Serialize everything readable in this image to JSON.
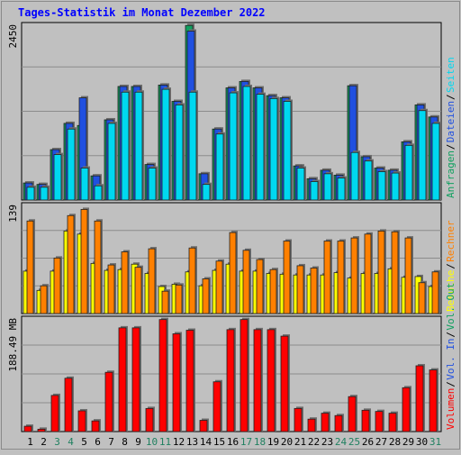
{
  "chart_data": {
    "type": "bar",
    "title": "Tages-Statistik im Monat Dezember 2022",
    "colors": {
      "background": "#c0c0c0",
      "title": "#0000ff",
      "anfragen": "#10a060",
      "dateien": "#2050e0",
      "seiten": "#00d8f0",
      "besuche": "#ffff00",
      "rechner": "#ff8000",
      "volumen": "#ff0000",
      "vol_in": "#2050e0",
      "vol_out": "#10a060",
      "weekend_day": "#208060",
      "weekday": "#000000"
    },
    "days": [
      "1",
      "2",
      "3",
      "4",
      "5",
      "6",
      "7",
      "8",
      "9",
      "10",
      "11",
      "12",
      "13",
      "14",
      "15",
      "16",
      "17",
      "18",
      "19",
      "20",
      "21",
      "22",
      "23",
      "24",
      "25",
      "26",
      "27",
      "28",
      "29",
      "30",
      "31"
    ],
    "weekend_days": [
      "3",
      "4",
      "10",
      "11",
      "17",
      "18",
      "24",
      "25",
      "31"
    ],
    "panels": [
      {
        "id": "hits",
        "max_label": "2450",
        "ymax": 2450,
        "legend": [
          {
            "label": "Anfragen",
            "color": "#10a060"
          },
          {
            "label": "Dateien",
            "color": "#2050e0"
          },
          {
            "label": "Seiten",
            "color": "#00d8f0"
          }
        ],
        "series": [
          {
            "name": "Anfragen",
            "color": "#10a060",
            "values": [
              240,
              220,
              710,
              1080,
              1050,
              340,
              1130,
              1600,
              1600,
              500,
              1620,
              1390,
              2460,
              370,
              1000,
              1580,
              1670,
              1580,
              1470,
              1440,
              480,
              300,
              420,
              350,
              1610,
              610,
              450,
              420,
              820,
              1340,
              1170
            ]
          },
          {
            "name": "Dateien",
            "color": "#2050e0",
            "values": [
              240,
              220,
              710,
              1080,
              1440,
              340,
              1130,
              1600,
              1600,
              500,
              1620,
              1390,
              2380,
              370,
              1000,
              1580,
              1670,
              1580,
              1470,
              1440,
              480,
              300,
              420,
              350,
              1610,
              610,
              450,
              420,
              820,
              1340,
              1170
            ]
          },
          {
            "name": "Seiten",
            "color": "#00d8f0",
            "values": [
              180,
              180,
              640,
              1000,
              450,
              200,
              1080,
              1520,
              1520,
              450,
              1560,
              1340,
              1520,
              220,
              930,
              1510,
              1600,
              1490,
              1430,
              1390,
              450,
              260,
              370,
              310,
              670,
              550,
              400,
              380,
              770,
              1260,
              1080
            ]
          }
        ]
      },
      {
        "id": "visits",
        "max_label": "139",
        "ymax": 139,
        "legend": [
          {
            "label": "Besuche",
            "color": "#ffff00"
          },
          {
            "label": "Rechner",
            "color": "#ff8000"
          }
        ],
        "series": [
          {
            "name": "Besuche",
            "color": "#ffff00",
            "values": [
              55,
              30,
              55,
              107,
              103,
              65,
              56,
              57,
              64,
              52,
              35,
              38,
              54,
              36,
              56,
              64,
              55,
              55,
              52,
              51,
              50,
              50,
              50,
              53,
              46,
              52,
              52,
              58,
              47,
              48,
              35
            ]
          },
          {
            "name": "Rechner",
            "color": "#ff8000",
            "values": [
              120,
              36,
              72,
              127,
              135,
              120,
              63,
              80,
              60,
              84,
              29,
              37,
              85,
              45,
              68,
              105,
              82,
              70,
              57,
              94,
              62,
              59,
              94,
              94,
              98,
              103,
              107,
              106,
              98,
              40,
              54
            ]
          }
        ]
      },
      {
        "id": "volume",
        "max_label": "188.49 MB",
        "ymax": 188.49,
        "legend": [
          {
            "label": "Volumen",
            "color": "#ff0000"
          },
          {
            "label": "Vol. In",
            "color": "#2050e0"
          },
          {
            "label": "Vol. Out",
            "color": "#10a060"
          }
        ],
        "series": [
          {
            "name": "Volumen",
            "color": "#ff0000",
            "values": [
              9,
              4,
              61,
              90,
              35,
              18,
              100,
              175,
              175,
              39,
              189,
              165,
              171,
              19,
              84,
              172,
              189,
              172,
              172,
              161,
              39,
              21,
              31,
              27,
              59,
              36,
              34,
              31,
              74,
              111,
              104
            ]
          }
        ]
      }
    ]
  }
}
